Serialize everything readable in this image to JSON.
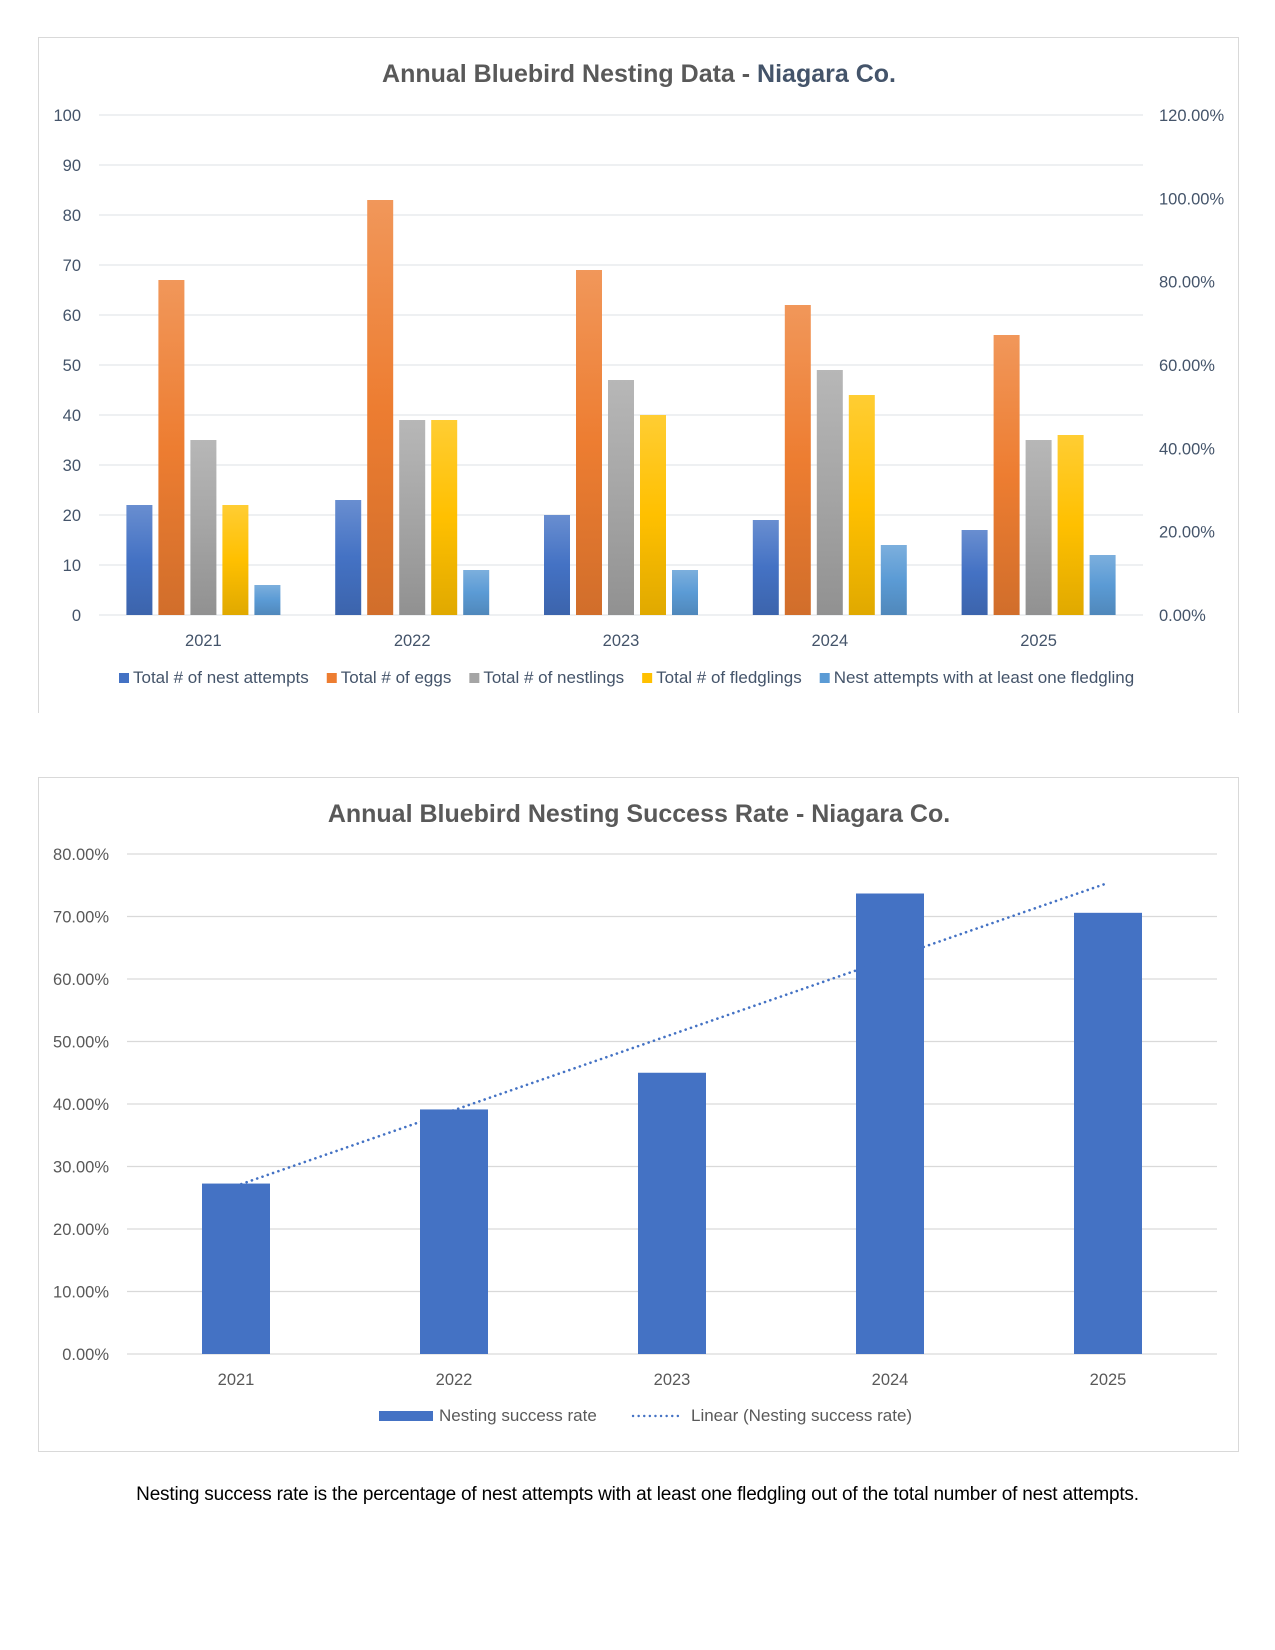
{
  "chart_data": [
    {
      "type": "bar",
      "title": "Annual Bluebird Nesting Data - Niagara Co.",
      "title_parts": [
        "Annual Bluebird Nesting Data - ",
        "Niagara Co."
      ],
      "categories": [
        "2021",
        "2022",
        "2023",
        "2024",
        "2025"
      ],
      "series": [
        {
          "name": "Total # of nest attempts",
          "color": "#4472C4",
          "values": [
            22,
            23,
            20,
            19,
            17
          ]
        },
        {
          "name": "Total # of eggs",
          "color": "#ED7D31",
          "values": [
            67,
            83,
            69,
            62,
            56
          ]
        },
        {
          "name": "Total # of nestlings",
          "color": "#A5A5A5",
          "values": [
            35,
            39,
            47,
            49,
            35
          ]
        },
        {
          "name": "Total # of fledglings",
          "color": "#FFC000",
          "values": [
            22,
            39,
            40,
            44,
            36
          ]
        },
        {
          "name": "Nest attempts with at least one fledgling",
          "color": "#5B9BD5",
          "values": [
            6,
            9,
            9,
            14,
            12
          ]
        }
      ],
      "ylim": [
        0,
        100
      ],
      "yticks": [
        "0",
        "10",
        "20",
        "30",
        "40",
        "50",
        "60",
        "70",
        "80",
        "90",
        "100"
      ],
      "y2lim": [
        0,
        1.2
      ],
      "y2ticks": [
        "0.00%",
        "20.00%",
        "40.00%",
        "60.00%",
        "80.00%",
        "100.00%",
        "120.00%"
      ],
      "xlabel": "",
      "ylabel": "",
      "grid": true,
      "legend": "bottom"
    },
    {
      "type": "bar",
      "title": "Annual Bluebird Nesting Success Rate - Niagara Co.",
      "categories": [
        "2021",
        "2022",
        "2023",
        "2024",
        "2025"
      ],
      "series": [
        {
          "name": "Nesting success rate",
          "color": "#4472C4",
          "values": [
            0.2727,
            0.3913,
            0.45,
            0.7368,
            0.7059
          ]
        }
      ],
      "trendline": {
        "name": "Linear (Nesting success rate)",
        "type": "linear",
        "color": "#4472C4",
        "style": "dotted"
      },
      "ylim": [
        0,
        0.8
      ],
      "yticks": [
        "0.00%",
        "10.00%",
        "20.00%",
        "30.00%",
        "40.00%",
        "50.00%",
        "60.00%",
        "70.00%",
        "80.00%"
      ],
      "xlabel": "",
      "ylabel": "",
      "grid": true,
      "legend": "bottom"
    }
  ],
  "footnote": "Nesting success rate is the percentage of nest attempts with at least one fledgling out of the total number of nest attempts."
}
